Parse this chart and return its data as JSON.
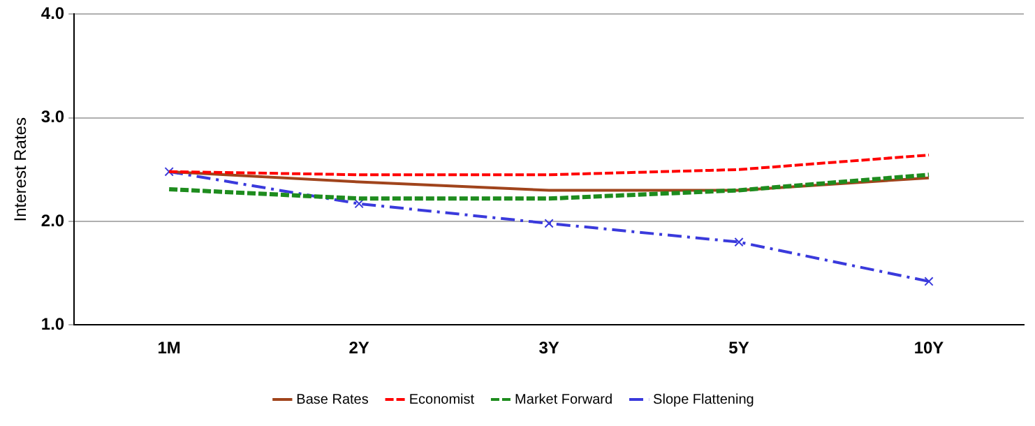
{
  "chart_data": {
    "type": "line",
    "ylabel": "Interest Rates",
    "categories": [
      "1M",
      "2Y",
      "3Y",
      "5Y",
      "10Y"
    ],
    "ylim": [
      1,
      4
    ],
    "yticks": [
      {
        "value": 1,
        "label": "1.0"
      },
      {
        "value": 2,
        "label": "2.0"
      },
      {
        "value": 3,
        "label": "3.0"
      },
      {
        "value": 4,
        "label": "4.0"
      }
    ],
    "grid": "y",
    "legend": "bottom",
    "series": [
      {
        "name": "Base Rates",
        "color": "#a0441c",
        "line_style": "solid",
        "marker": "none",
        "values": [
          2.48,
          2.38,
          2.3,
          2.3,
          2.42
        ]
      },
      {
        "name": "Economist",
        "color": "#ff0000",
        "line_style": "dashed",
        "marker": "none",
        "values": [
          2.48,
          2.45,
          2.45,
          2.5,
          2.64
        ]
      },
      {
        "name": "Market Forward",
        "color": "#1e8c1e",
        "line_style": "dashed",
        "marker": "none",
        "values": [
          2.31,
          2.22,
          2.22,
          2.3,
          2.45
        ]
      },
      {
        "name": "Slope Flattening",
        "color": "#3a3adc",
        "line_style": "dashdot",
        "marker": "cross",
        "values": [
          2.48,
          2.17,
          1.98,
          1.8,
          1.42
        ]
      }
    ]
  }
}
